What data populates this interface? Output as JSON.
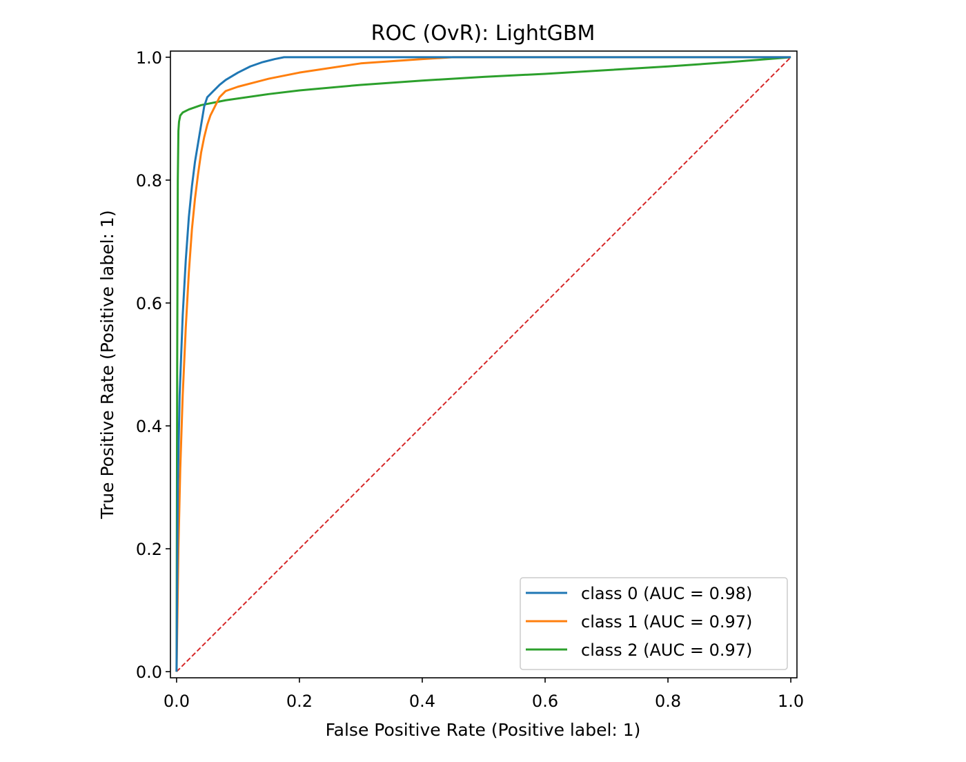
{
  "chart_data": {
    "type": "line",
    "title": "ROC (OvR): LightGBM",
    "xlabel": "False Positive Rate (Positive label: 1)",
    "ylabel": "True Positive Rate (Positive label: 1)",
    "xlim": [
      -0.01,
      1.01
    ],
    "ylim": [
      -0.01,
      1.01
    ],
    "xticks": [
      0.0,
      0.2,
      0.4,
      0.6,
      0.8,
      1.0
    ],
    "yticks": [
      0.0,
      0.2,
      0.4,
      0.6,
      0.8,
      1.0
    ],
    "xtick_labels": [
      "0.0",
      "0.2",
      "0.4",
      "0.6",
      "0.8",
      "1.0"
    ],
    "ytick_labels": [
      "0.0",
      "0.2",
      "0.4",
      "0.6",
      "0.8",
      "1.0"
    ],
    "grid": false,
    "legend_position": "lower-right",
    "series": [
      {
        "name": "class 0 (AUC = 0.98)",
        "color": "#1f77b4",
        "x": [
          0,
          0.002,
          0.005,
          0.01,
          0.015,
          0.02,
          0.025,
          0.03,
          0.035,
          0.04,
          0.045,
          0.05,
          0.06,
          0.07,
          0.08,
          0.1,
          0.12,
          0.14,
          0.16,
          0.175,
          0.2,
          0.3,
          0.4,
          0.6,
          0.8,
          1.0
        ],
        "y": [
          0,
          0.3,
          0.45,
          0.58,
          0.67,
          0.74,
          0.79,
          0.83,
          0.86,
          0.89,
          0.92,
          0.935,
          0.945,
          0.955,
          0.963,
          0.975,
          0.985,
          0.992,
          0.997,
          1.0,
          1.0,
          1.0,
          1.0,
          1.0,
          1.0,
          1.0
        ]
      },
      {
        "name": "class 1 (AUC = 0.97)",
        "color": "#ff7f0e",
        "x": [
          0,
          0.003,
          0.006,
          0.01,
          0.015,
          0.02,
          0.025,
          0.03,
          0.035,
          0.04,
          0.045,
          0.05,
          0.055,
          0.06,
          0.065,
          0.07,
          0.08,
          0.1,
          0.15,
          0.2,
          0.3,
          0.4,
          0.45,
          0.6,
          0.8,
          1.0
        ],
        "y": [
          0,
          0.2,
          0.33,
          0.45,
          0.56,
          0.65,
          0.72,
          0.77,
          0.81,
          0.845,
          0.87,
          0.89,
          0.905,
          0.915,
          0.925,
          0.935,
          0.945,
          0.952,
          0.965,
          0.975,
          0.99,
          0.997,
          1.0,
          1.0,
          1.0,
          1.0
        ]
      },
      {
        "name": "class 2 (AUC = 0.97)",
        "color": "#2ca02c",
        "x": [
          0,
          0.001,
          0.002,
          0.003,
          0.004,
          0.006,
          0.01,
          0.02,
          0.04,
          0.08,
          0.15,
          0.2,
          0.3,
          0.4,
          0.5,
          0.6,
          0.7,
          0.8,
          0.9,
          1.0
        ],
        "y": [
          0,
          0.5,
          0.8,
          0.88,
          0.895,
          0.905,
          0.91,
          0.915,
          0.922,
          0.93,
          0.94,
          0.946,
          0.955,
          0.962,
          0.968,
          0.973,
          0.979,
          0.985,
          0.992,
          1.0
        ]
      }
    ],
    "reference_line": {
      "name": "chance",
      "color": "#d62728",
      "style": "dashed",
      "x": [
        0,
        1
      ],
      "y": [
        0,
        1
      ]
    }
  }
}
